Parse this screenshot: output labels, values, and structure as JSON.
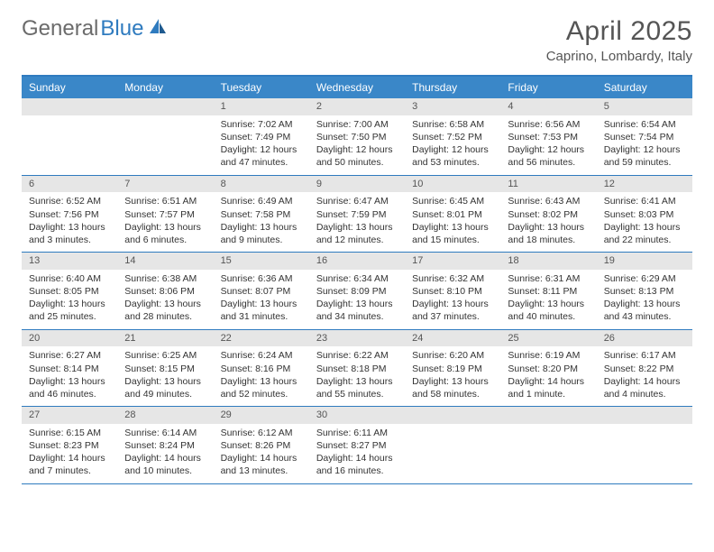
{
  "brand": {
    "part1": "General",
    "part2": "Blue"
  },
  "title": "April 2025",
  "location": "Caprino, Lombardy, Italy",
  "colors": {
    "header_bg": "#3a87c8",
    "border": "#2f7bbf",
    "daynum_bg": "#e6e6e6",
    "text": "#333333",
    "muted": "#555555"
  },
  "dow": [
    "Sunday",
    "Monday",
    "Tuesday",
    "Wednesday",
    "Thursday",
    "Friday",
    "Saturday"
  ],
  "weeks": [
    [
      null,
      null,
      {
        "n": "1",
        "sr": "7:02 AM",
        "ss": "7:49 PM",
        "dl": "12 hours and 47 minutes."
      },
      {
        "n": "2",
        "sr": "7:00 AM",
        "ss": "7:50 PM",
        "dl": "12 hours and 50 minutes."
      },
      {
        "n": "3",
        "sr": "6:58 AM",
        "ss": "7:52 PM",
        "dl": "12 hours and 53 minutes."
      },
      {
        "n": "4",
        "sr": "6:56 AM",
        "ss": "7:53 PM",
        "dl": "12 hours and 56 minutes."
      },
      {
        "n": "5",
        "sr": "6:54 AM",
        "ss": "7:54 PM",
        "dl": "12 hours and 59 minutes."
      }
    ],
    [
      {
        "n": "6",
        "sr": "6:52 AM",
        "ss": "7:56 PM",
        "dl": "13 hours and 3 minutes."
      },
      {
        "n": "7",
        "sr": "6:51 AM",
        "ss": "7:57 PM",
        "dl": "13 hours and 6 minutes."
      },
      {
        "n": "8",
        "sr": "6:49 AM",
        "ss": "7:58 PM",
        "dl": "13 hours and 9 minutes."
      },
      {
        "n": "9",
        "sr": "6:47 AM",
        "ss": "7:59 PM",
        "dl": "13 hours and 12 minutes."
      },
      {
        "n": "10",
        "sr": "6:45 AM",
        "ss": "8:01 PM",
        "dl": "13 hours and 15 minutes."
      },
      {
        "n": "11",
        "sr": "6:43 AM",
        "ss": "8:02 PM",
        "dl": "13 hours and 18 minutes."
      },
      {
        "n": "12",
        "sr": "6:41 AM",
        "ss": "8:03 PM",
        "dl": "13 hours and 22 minutes."
      }
    ],
    [
      {
        "n": "13",
        "sr": "6:40 AM",
        "ss": "8:05 PM",
        "dl": "13 hours and 25 minutes."
      },
      {
        "n": "14",
        "sr": "6:38 AM",
        "ss": "8:06 PM",
        "dl": "13 hours and 28 minutes."
      },
      {
        "n": "15",
        "sr": "6:36 AM",
        "ss": "8:07 PM",
        "dl": "13 hours and 31 minutes."
      },
      {
        "n": "16",
        "sr": "6:34 AM",
        "ss": "8:09 PM",
        "dl": "13 hours and 34 minutes."
      },
      {
        "n": "17",
        "sr": "6:32 AM",
        "ss": "8:10 PM",
        "dl": "13 hours and 37 minutes."
      },
      {
        "n": "18",
        "sr": "6:31 AM",
        "ss": "8:11 PM",
        "dl": "13 hours and 40 minutes."
      },
      {
        "n": "19",
        "sr": "6:29 AM",
        "ss": "8:13 PM",
        "dl": "13 hours and 43 minutes."
      }
    ],
    [
      {
        "n": "20",
        "sr": "6:27 AM",
        "ss": "8:14 PM",
        "dl": "13 hours and 46 minutes."
      },
      {
        "n": "21",
        "sr": "6:25 AM",
        "ss": "8:15 PM",
        "dl": "13 hours and 49 minutes."
      },
      {
        "n": "22",
        "sr": "6:24 AM",
        "ss": "8:16 PM",
        "dl": "13 hours and 52 minutes."
      },
      {
        "n": "23",
        "sr": "6:22 AM",
        "ss": "8:18 PM",
        "dl": "13 hours and 55 minutes."
      },
      {
        "n": "24",
        "sr": "6:20 AM",
        "ss": "8:19 PM",
        "dl": "13 hours and 58 minutes."
      },
      {
        "n": "25",
        "sr": "6:19 AM",
        "ss": "8:20 PM",
        "dl": "14 hours and 1 minute."
      },
      {
        "n": "26",
        "sr": "6:17 AM",
        "ss": "8:22 PM",
        "dl": "14 hours and 4 minutes."
      }
    ],
    [
      {
        "n": "27",
        "sr": "6:15 AM",
        "ss": "8:23 PM",
        "dl": "14 hours and 7 minutes."
      },
      {
        "n": "28",
        "sr": "6:14 AM",
        "ss": "8:24 PM",
        "dl": "14 hours and 10 minutes."
      },
      {
        "n": "29",
        "sr": "6:12 AM",
        "ss": "8:26 PM",
        "dl": "14 hours and 13 minutes."
      },
      {
        "n": "30",
        "sr": "6:11 AM",
        "ss": "8:27 PM",
        "dl": "14 hours and 16 minutes."
      },
      null,
      null,
      null
    ]
  ],
  "labels": {
    "sunrise": "Sunrise: ",
    "sunset": "Sunset: ",
    "daylight": "Daylight: "
  }
}
